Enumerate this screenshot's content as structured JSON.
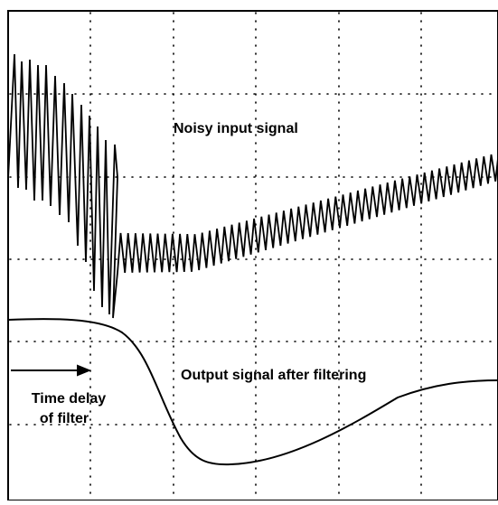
{
  "labels": {
    "input": "Noisy input signal",
    "output": "Output signal after filtering",
    "delay_line1": "Time delay",
    "delay_line2": "of filter"
  }
}
